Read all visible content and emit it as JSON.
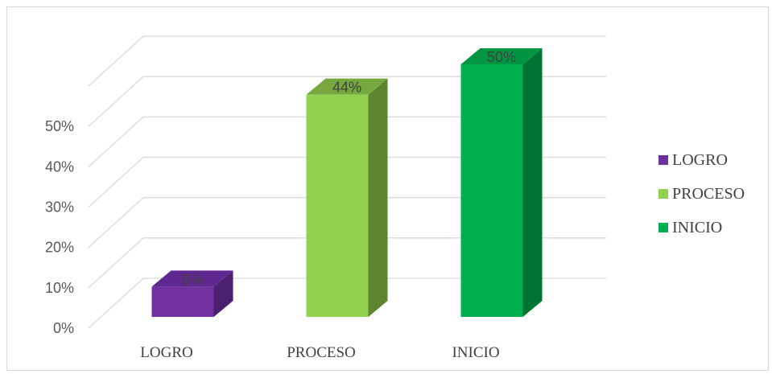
{
  "chart_data": {
    "type": "bar",
    "style": "3d-column",
    "categories": [
      "LOGRO",
      "PROCESO",
      "INICIO"
    ],
    "values": [
      6,
      44,
      50
    ],
    "data_labels": [
      "6%",
      "44%",
      "50%"
    ],
    "colors": {
      "LOGRO": {
        "front": "#7030a0",
        "side": "#4b1f6f",
        "top": "#5f2890"
      },
      "PROCESO": {
        "front": "#92d050",
        "side": "#5f8432",
        "top": "#76a83f"
      },
      "INICIO": {
        "front": "#00b050",
        "side": "#007533",
        "top": "#009641"
      }
    },
    "y_ticks": [
      0,
      10,
      20,
      30,
      40,
      50,
      60
    ],
    "y_tick_labels": [
      "0%",
      "10%",
      "20%",
      "30%",
      "40%",
      "50%",
      ""
    ],
    "ylim": [
      0,
      60
    ],
    "grid": true,
    "gridline_color": "#d9d9d9",
    "legend": {
      "position": "right",
      "entries": [
        "LOGRO",
        "PROCESO",
        "INICIO"
      ]
    },
    "title": "",
    "xlabel": "",
    "ylabel": ""
  }
}
